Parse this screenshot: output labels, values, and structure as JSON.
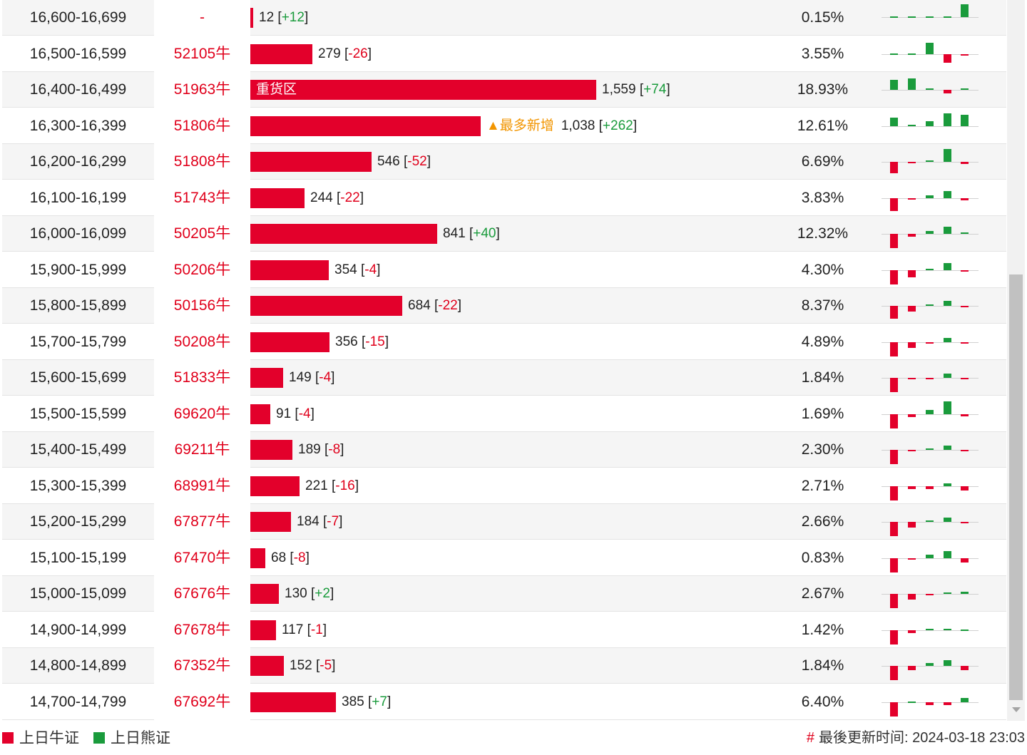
{
  "colors": {
    "bull": "#e3002b",
    "bear": "#1a9b3c",
    "flag": "#f29500"
  },
  "rows": [
    {
      "range": "16,600-16,699",
      "code": "-",
      "count": "12",
      "change": "+12",
      "pct": "0.15%",
      "bar_value": 12,
      "spark": [
        0,
        0,
        0,
        0,
        -18
      ]
    },
    {
      "range": "16,500-16,599",
      "code": "52105牛",
      "count": "279",
      "change": "-26",
      "pct": "3.55%",
      "bar_value": 279,
      "spark": [
        0,
        0,
        -16,
        12,
        2
      ]
    },
    {
      "range": "16,400-16,499",
      "code": "51963牛",
      "count": "1,559",
      "change": "+74",
      "pct": "18.93%",
      "bar_value": 1559,
      "bar_label": "重货区",
      "spark": [
        -14,
        -16,
        -2,
        5,
        -2
      ]
    },
    {
      "range": "16,300-16,399",
      "code": "51806牛",
      "count": "1,038",
      "change": "+262",
      "pct": "12.61%",
      "bar_value": 1038,
      "flag": "▲最多新增",
      "spark": [
        -12,
        -2,
        -7,
        -18,
        -16
      ]
    },
    {
      "range": "16,200-16,299",
      "code": "51808牛",
      "count": "546",
      "change": "-52",
      "pct": "6.69%",
      "bar_value": 546,
      "spark": [
        16,
        2,
        -2,
        -18,
        3
      ]
    },
    {
      "range": "16,100-16,199",
      "code": "51743牛",
      "count": "244",
      "change": "-22",
      "pct": "3.83%",
      "bar_value": 244,
      "spark": [
        18,
        2,
        -4,
        -10,
        3
      ]
    },
    {
      "range": "16,000-16,099",
      "code": "50205牛",
      "count": "841",
      "change": "+40",
      "pct": "12.32%",
      "bar_value": 841,
      "spark": [
        20,
        4,
        -4,
        -10,
        -2
      ]
    },
    {
      "range": "15,900-15,999",
      "code": "50206牛",
      "count": "354",
      "change": "-4",
      "pct": "4.30%",
      "bar_value": 354,
      "spark": [
        20,
        10,
        -2,
        -10,
        2
      ]
    },
    {
      "range": "15,800-15,899",
      "code": "50156牛",
      "count": "684",
      "change": "-22",
      "pct": "8.37%",
      "bar_value": 684,
      "spark": [
        18,
        8,
        -2,
        -7,
        2
      ]
    },
    {
      "range": "15,700-15,799",
      "code": "50208牛",
      "count": "356",
      "change": "-15",
      "pct": "4.89%",
      "bar_value": 356,
      "spark": [
        20,
        8,
        2,
        -6,
        2
      ]
    },
    {
      "range": "15,600-15,699",
      "code": "51833牛",
      "count": "149",
      "change": "-4",
      "pct": "1.84%",
      "bar_value": 149,
      "spark": [
        20,
        2,
        2,
        -6,
        2
      ]
    },
    {
      "range": "15,500-15,599",
      "code": "69620牛",
      "count": "91",
      "change": "-4",
      "pct": "1.69%",
      "bar_value": 91,
      "spark": [
        20,
        4,
        -6,
        -18,
        3
      ]
    },
    {
      "range": "15,400-15,499",
      "code": "69211牛",
      "count": "189",
      "change": "-8",
      "pct": "2.30%",
      "bar_value": 189,
      "spark": [
        20,
        2,
        -2,
        -6,
        2
      ]
    },
    {
      "range": "15,300-15,399",
      "code": "68991牛",
      "count": "221",
      "change": "-16",
      "pct": "2.71%",
      "bar_value": 221,
      "spark": [
        20,
        4,
        4,
        -4,
        6
      ]
    },
    {
      "range": "15,200-15,299",
      "code": "67877牛",
      "count": "184",
      "change": "-7",
      "pct": "2.66%",
      "bar_value": 184,
      "spark": [
        20,
        8,
        -2,
        -6,
        2
      ]
    },
    {
      "range": "15,100-15,199",
      "code": "67470牛",
      "count": "68",
      "change": "-8",
      "pct": "0.83%",
      "bar_value": 68,
      "spark": [
        20,
        2,
        -5,
        -10,
        6
      ]
    },
    {
      "range": "15,000-15,099",
      "code": "67676牛",
      "count": "130",
      "change": "+2",
      "pct": "2.67%",
      "bar_value": 130,
      "spark": [
        20,
        8,
        2,
        -2,
        -3
      ]
    },
    {
      "range": "14,900-14,999",
      "code": "67678牛",
      "count": "117",
      "change": "-1",
      "pct": "1.42%",
      "bar_value": 117,
      "spark": [
        20,
        4,
        -2,
        -2,
        0
      ]
    },
    {
      "range": "14,800-14,899",
      "code": "67352牛",
      "count": "152",
      "change": "-5",
      "pct": "1.84%",
      "bar_value": 152,
      "spark": [
        20,
        6,
        -4,
        -8,
        6
      ]
    },
    {
      "range": "14,700-14,799",
      "code": "67692牛",
      "count": "385",
      "change": "+7",
      "pct": "6.40%",
      "bar_value": 385,
      "spark": [
        20,
        0,
        4,
        4,
        -6
      ]
    }
  ],
  "footer": {
    "legend_bull": "上日牛证",
    "legend_bear": "上日熊证",
    "update_prefix": "#",
    "update_text": "最後更新时间: 2024-03-18 23:03"
  }
}
